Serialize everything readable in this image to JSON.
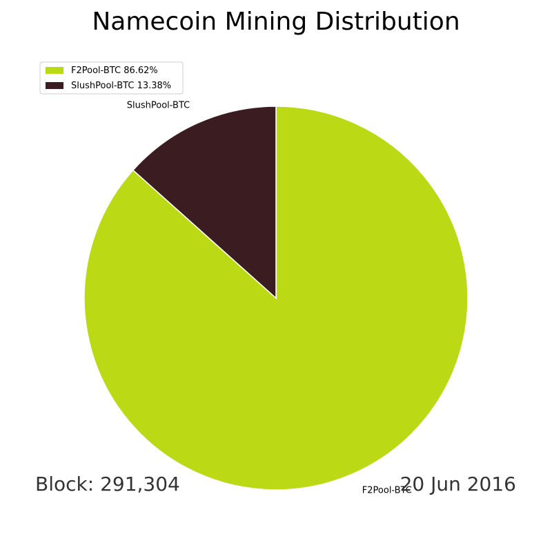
{
  "chart_data": {
    "type": "pie",
    "title": "Namecoin Mining Distribution",
    "categories": [
      "F2Pool-BTC",
      "SlushPool-BTC"
    ],
    "values": [
      86.62,
      13.38
    ],
    "value_labels": [
      "86.62%",
      "13.38%"
    ],
    "colors": [
      "#bcd916",
      "#3b1c21"
    ],
    "start_angle": 90,
    "counterclock": false,
    "legend": "upper left",
    "annotations": [
      "Block: 291,304",
      "20 Jun 2016"
    ]
  }
}
